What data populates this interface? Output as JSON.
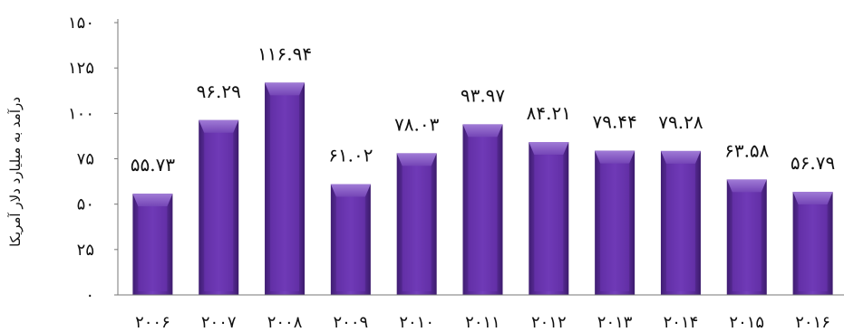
{
  "chart_data": {
    "type": "bar",
    "categories": [
      "۲۰۰۶",
      "۲۰۰۷",
      "۲۰۰۸",
      "۲۰۰۹",
      "۲۰۱۰",
      "۲۰۱۱",
      "۲۰۱۲",
      "۲۰۱۳",
      "۲۰۱۴",
      "۲۰۱۵",
      "۲۰۱۶"
    ],
    "values": [
      55.73,
      96.29,
      116.94,
      61.02,
      78.03,
      93.97,
      84.21,
      79.44,
      79.28,
      63.58,
      56.79
    ],
    "value_labels": [
      "۵۵.۷۳",
      "۹۶.۲۹",
      "۱۱۶.۹۴",
      "۶۱.۰۲",
      "۷۸.۰۳",
      "۹۳.۹۷",
      "۸۴.۲۱",
      "۷۹.۴۴",
      "۷۹.۲۸",
      "۶۳.۵۸",
      "۵۶.۷۹"
    ],
    "ylabel": "درآمد به میلیارد دلار آمریکا",
    "ylim": [
      0,
      150
    ],
    "yticks": [
      0,
      25,
      50,
      75,
      100,
      125,
      150
    ],
    "ytick_labels": [
      "۰",
      "۲۵",
      "۵۰",
      "۷۵",
      "۱۰۰",
      "۱۲۵",
      "۱۵۰"
    ],
    "grid": false,
    "bar_color": "#5a2a97",
    "bar_face_color": "#6b34b2",
    "bar_top_color": "#8f63c9"
  }
}
